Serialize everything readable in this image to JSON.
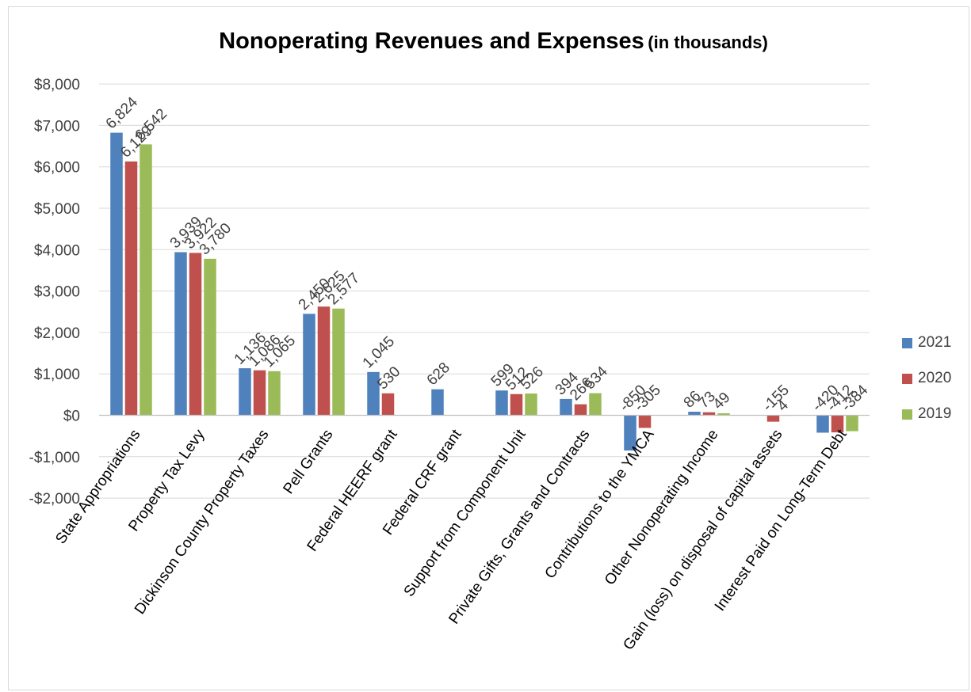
{
  "title": "Nonoperating Revenues and Expenses",
  "subtitle": "(in thousands)",
  "legend": [
    {
      "name": "2021",
      "color": "#4f81bd"
    },
    {
      "name": "2020",
      "color": "#c0504d"
    },
    {
      "name": "2019",
      "color": "#9bbb59"
    }
  ],
  "chart_data": {
    "type": "bar",
    "title": "Nonoperating Revenues and Expenses (in thousands)",
    "xlabel": "",
    "ylabel": "",
    "ylim": [
      -2000,
      8000
    ],
    "yticks": [
      8000,
      7000,
      6000,
      5000,
      4000,
      3000,
      2000,
      1000,
      0,
      -1000,
      -2000
    ],
    "ytick_labels": [
      "$8,000",
      "$7,000",
      "$6,000",
      "$5,000",
      "$4,000",
      "$3,000",
      "$2,000",
      "$1,000",
      "$0",
      "-$1,000",
      "-$2,000"
    ],
    "grid": true,
    "legend_position": "right",
    "categories": [
      "State Appropriations",
      "Property Tax Levy",
      "Dickinson County Property Taxes",
      "Pell Grants",
      "Federal HEERF grant",
      "Federal CRF grant",
      "Support from Component Unit",
      "Private Gifts, Grants and Contracts",
      "Contributions to the YMCA",
      "Other Nonoperating Income",
      "Gain (loss) on disposal of capital assets",
      "Interest Paid on Long-Term Debt"
    ],
    "series": [
      {
        "name": "2021",
        "color": "#4f81bd",
        "values": [
          6824,
          3939,
          1136,
          2450,
          1045,
          628,
          599,
          394,
          -850,
          86,
          null,
          -420
        ],
        "labels": [
          "6,824",
          "3,939",
          "1,136",
          "2,450",
          "1,045",
          "628",
          "599",
          "394",
          "-850",
          "86",
          "",
          "-420"
        ]
      },
      {
        "name": "2020",
        "color": "#c0504d",
        "values": [
          6129,
          3922,
          1086,
          2625,
          530,
          null,
          512,
          266,
          -305,
          73,
          -155,
          -412
        ],
        "labels": [
          "6,129",
          "3,922",
          "1,086",
          "2,625",
          "530",
          "",
          "512",
          "266",
          "-305",
          "73",
          "-155",
          "-412"
        ]
      },
      {
        "name": "2019",
        "color": "#9bbb59",
        "values": [
          6542,
          3780,
          1065,
          2577,
          null,
          null,
          526,
          534,
          null,
          49,
          4,
          -384
        ],
        "labels": [
          "6,542",
          "3,780",
          "1,065",
          "2,577",
          "",
          "",
          "526",
          "534",
          "",
          "49",
          "4",
          "-384"
        ]
      }
    ]
  }
}
